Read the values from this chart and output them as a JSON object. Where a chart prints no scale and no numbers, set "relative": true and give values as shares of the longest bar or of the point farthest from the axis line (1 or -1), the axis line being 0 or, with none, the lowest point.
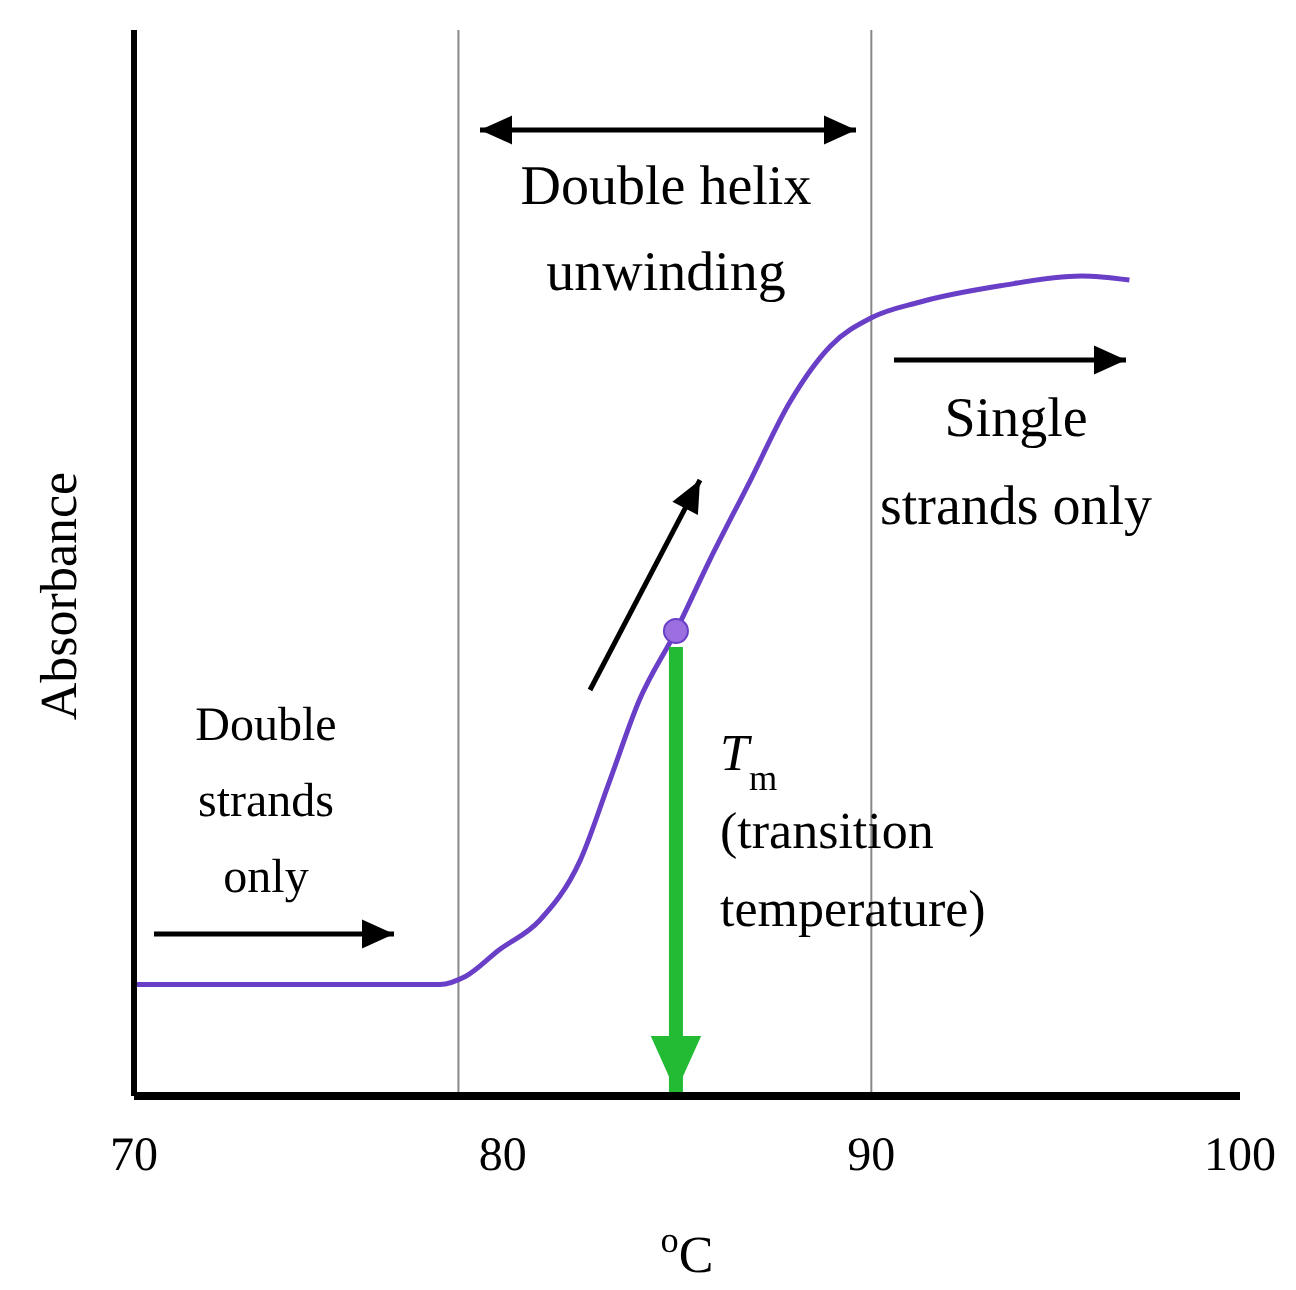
{
  "chart_data": {
    "type": "line",
    "relative": true,
    "xlabel": "$^{o}$C",
    "ylabel": "Absorbance",
    "xlim": [
      70,
      100
    ],
    "xticks": [
      70,
      80,
      90,
      100
    ],
    "series": [
      {
        "color": "#6a3fc8",
        "x": [
          70,
          78.3,
          79,
          79.9,
          81,
          82.1,
          82.9,
          83.7,
          84.7,
          85.6,
          86.7,
          87.8,
          88.9,
          90,
          91.3,
          93.5,
          95.7,
          97
        ],
        "values": [
          0.136,
          0.136,
          0.146,
          0.178,
          0.214,
          0.287,
          0.384,
          0.482,
          0.567,
          0.652,
          0.749,
          0.847,
          0.915,
          0.949,
          0.968,
          0.988,
          1,
          0.995
        ]
      },
      {
        "type": "scatter",
        "marker": "circle",
        "color": "#9b6fe0",
        "x": [
          84.7
        ],
        "values": [
          0.567
        ]
      }
    ],
    "ref_lines": [
      {
        "axis": "x",
        "value": 78.8,
        "color": "#888888"
      },
      {
        "axis": "x",
        "value": 90,
        "color": "#888888"
      }
    ],
    "annotations": [
      "Double helix\nunwinding",
      "Single\nstrands only",
      "Double\nstrands\nonly",
      {
        "text": "T$_{m}$\n(transition\ntemperature)",
        "x": 84.7,
        "y": 0.567
      }
    ],
    "line_style": "solid"
  }
}
